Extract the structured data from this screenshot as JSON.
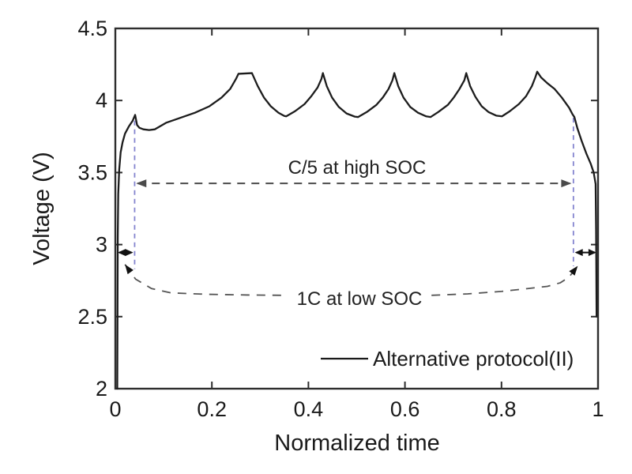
{
  "figure": {
    "background": "#ffffff",
    "axis_color": "#2e2e2e",
    "text_color": "#1a1a1a",
    "guide_color": "#8585cf",
    "annotation_line_color": "#4a4a4a",
    "leader_line_color": "#555555",
    "curve_color": "#1c1c1c"
  },
  "chart_data": {
    "type": "line",
    "title": "",
    "xlabel": "Normalized time",
    "ylabel": "Voltage (V)",
    "xlim": [
      0,
      1
    ],
    "ylim": [
      2,
      4.5
    ],
    "xticks": [
      0,
      0.2,
      0.4,
      0.6,
      0.8,
      1
    ],
    "xtick_labels": [
      "0",
      "0.2",
      "0.4",
      "0.6",
      "0.8",
      "1"
    ],
    "yticks": [
      2,
      2.5,
      3,
      3.5,
      4,
      4.5
    ],
    "ytick_labels": [
      "2",
      "2.5",
      "3",
      "3.5",
      "4",
      "4.5"
    ],
    "grid": false,
    "box": true,
    "legend": {
      "position": "lower right",
      "entries": [
        {
          "label": "Alternative protocol(II)",
          "color": "#1c1c1c",
          "style": "solid"
        }
      ]
    },
    "series": [
      {
        "name": "Alternative protocol(II)",
        "color": "#1c1c1c",
        "width": 2.3,
        "points": [
          [
            0.004,
            2.0
          ],
          [
            0.005,
            3.05
          ],
          [
            0.006,
            3.35
          ],
          [
            0.008,
            3.52
          ],
          [
            0.011,
            3.64
          ],
          [
            0.015,
            3.71
          ],
          [
            0.02,
            3.77
          ],
          [
            0.028,
            3.82
          ],
          [
            0.036,
            3.86
          ],
          [
            0.041,
            3.9
          ],
          [
            0.045,
            3.83
          ],
          [
            0.05,
            3.81
          ],
          [
            0.058,
            3.8
          ],
          [
            0.07,
            3.795
          ],
          [
            0.082,
            3.8
          ],
          [
            0.105,
            3.845
          ],
          [
            0.135,
            3.88
          ],
          [
            0.165,
            3.915
          ],
          [
            0.195,
            3.96
          ],
          [
            0.22,
            4.02
          ],
          [
            0.238,
            4.08
          ],
          [
            0.25,
            4.15
          ],
          [
            0.255,
            4.185
          ],
          [
            0.283,
            4.19
          ],
          [
            0.295,
            4.1
          ],
          [
            0.308,
            4.02
          ],
          [
            0.322,
            3.96
          ],
          [
            0.338,
            3.915
          ],
          [
            0.35,
            3.893
          ],
          [
            0.354,
            3.89
          ],
          [
            0.372,
            3.925
          ],
          [
            0.392,
            3.975
          ],
          [
            0.406,
            4.03
          ],
          [
            0.419,
            4.09
          ],
          [
            0.427,
            4.15
          ],
          [
            0.43,
            4.19
          ],
          [
            0.438,
            4.1
          ],
          [
            0.449,
            4.02
          ],
          [
            0.463,
            3.955
          ],
          [
            0.479,
            3.91
          ],
          [
            0.496,
            3.888
          ],
          [
            0.503,
            3.885
          ],
          [
            0.521,
            3.92
          ],
          [
            0.541,
            3.97
          ],
          [
            0.554,
            4.02
          ],
          [
            0.566,
            4.08
          ],
          [
            0.574,
            4.14
          ],
          [
            0.578,
            4.19
          ],
          [
            0.586,
            4.1
          ],
          [
            0.597,
            4.02
          ],
          [
            0.611,
            3.955
          ],
          [
            0.627,
            3.915
          ],
          [
            0.644,
            3.89
          ],
          [
            0.653,
            3.885
          ],
          [
            0.669,
            3.92
          ],
          [
            0.689,
            3.97
          ],
          [
            0.701,
            4.02
          ],
          [
            0.713,
            4.08
          ],
          [
            0.723,
            4.14
          ],
          [
            0.727,
            4.19
          ],
          [
            0.735,
            4.1
          ],
          [
            0.746,
            4.025
          ],
          [
            0.759,
            3.96
          ],
          [
            0.773,
            3.92
          ],
          [
            0.789,
            3.895
          ],
          [
            0.801,
            3.89
          ],
          [
            0.817,
            3.925
          ],
          [
            0.836,
            3.975
          ],
          [
            0.851,
            4.03
          ],
          [
            0.863,
            4.1
          ],
          [
            0.87,
            4.16
          ],
          [
            0.874,
            4.2
          ],
          [
            0.882,
            4.16
          ],
          [
            0.895,
            4.12
          ],
          [
            0.91,
            4.08
          ],
          [
            0.925,
            4.02
          ],
          [
            0.94,
            3.95
          ],
          [
            0.947,
            3.905
          ],
          [
            0.951,
            3.885
          ],
          [
            0.957,
            3.81
          ],
          [
            0.966,
            3.72
          ],
          [
            0.976,
            3.63
          ],
          [
            0.985,
            3.56
          ],
          [
            0.991,
            3.5
          ],
          [
            0.995,
            3.42
          ],
          [
            0.996,
            3.1
          ],
          [
            0.9965,
            2.8
          ],
          [
            0.997,
            2.5
          ]
        ]
      }
    ],
    "annotations": {
      "labels": {
        "c5": "C/5 at high SOC",
        "low": "1C at low SOC"
      },
      "guides": [
        {
          "x": 0.04,
          "v_top": 3.86,
          "v_bottom": 2.83
        },
        {
          "x": 0.949,
          "v_top": 3.88,
          "v_bottom": 2.85
        }
      ],
      "span_arrows": [
        {
          "id": "c5-span",
          "v": 3.425,
          "x1": 0.043,
          "x2": 0.945,
          "dash": "10 8",
          "color": "#4a4a4a",
          "head_len": 13,
          "head_w": 5,
          "width": 2
        },
        {
          "id": "left-window",
          "v": 2.945,
          "x1": 0.005,
          "x2": 0.037,
          "dash": "",
          "color": "#111111",
          "head_len": 10,
          "head_w": 4.5,
          "width": 2
        },
        {
          "id": "right-window",
          "v": 2.945,
          "x1": 0.952,
          "x2": 0.9965,
          "dash": "",
          "color": "#111111",
          "head_len": 10,
          "head_w": 4.5,
          "width": 2
        }
      ],
      "leaders": [
        {
          "id": "1c-left",
          "arrow_at": "start",
          "color": "#555555",
          "dash": "11 9",
          "width": 1.8,
          "points": [
            [
              0.02,
              2.862
            ],
            [
              0.042,
              2.76
            ],
            [
              0.075,
              2.695
            ],
            [
              0.115,
              2.665
            ],
            [
              0.19,
              2.655
            ],
            [
              0.275,
              2.65
            ],
            [
              0.345,
              2.648
            ]
          ]
        },
        {
          "id": "1c-right",
          "arrow_at": "end",
          "color": "#555555",
          "dash": "11 9",
          "width": 1.8,
          "points": [
            [
              0.655,
              2.648
            ],
            [
              0.73,
              2.658
            ],
            [
              0.8,
              2.675
            ],
            [
              0.855,
              2.695
            ],
            [
              0.895,
              2.71
            ],
            [
              0.922,
              2.735
            ],
            [
              0.94,
              2.775
            ],
            [
              0.958,
              2.852
            ]
          ]
        }
      ]
    }
  }
}
